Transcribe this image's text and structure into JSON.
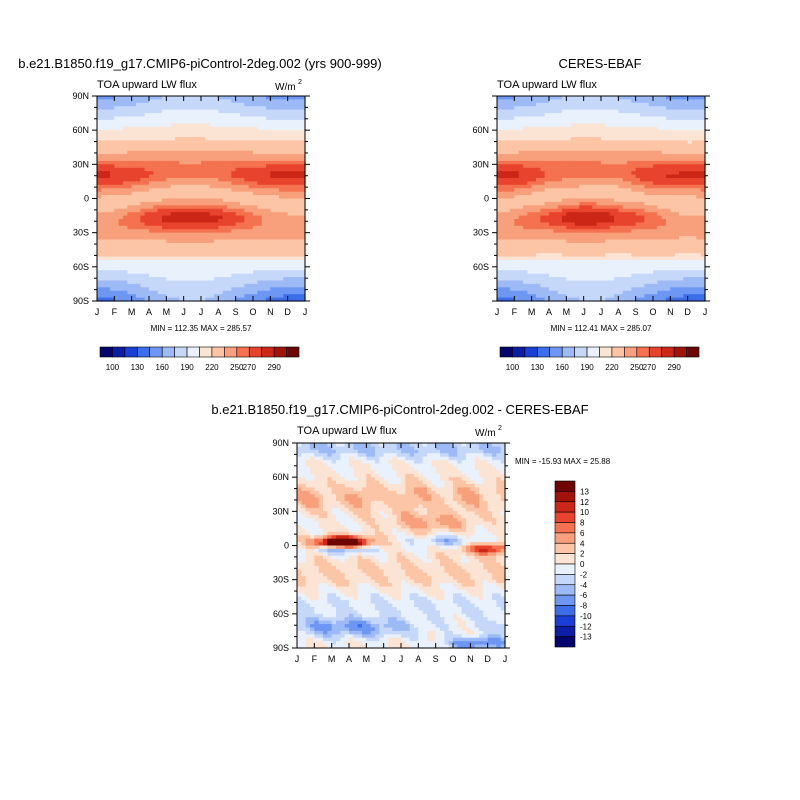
{
  "palettes": {
    "abs": [
      "#03056d",
      "#0a1fa6",
      "#1a3fd6",
      "#3d6ee9",
      "#6d97f2",
      "#9dbaf7",
      "#c6d8fa",
      "#e9f1fd",
      "#fce4d4",
      "#fbc5a6",
      "#f8a07c",
      "#f4724f",
      "#e8432d",
      "#cc2616",
      "#a11208",
      "#6e0404"
    ],
    "diff": [
      "#03056d",
      "#0a1fa6",
      "#1a3fd6",
      "#3d6ee9",
      "#6d97f2",
      "#9dbaf7",
      "#c6d8fa",
      "#e9f1fd",
      "#fce4d4",
      "#fbc5a6",
      "#f8a07c",
      "#f4724f",
      "#e8432d",
      "#cc2616",
      "#a11208",
      "#6e0404"
    ]
  },
  "panels": [
    {
      "id": "model",
      "title": "b.e21.B1850.f19_g17.CMIP6-piControl-2deg.002 (yrs 900-999)",
      "subtitle_left": "TOA upward LW flux",
      "units": "W/m",
      "units_sup": "2",
      "stats": "MIN = 112.35 MAX = 285.57"
    },
    {
      "id": "obs",
      "title": "CERES-EBAF",
      "subtitle_left": "TOA upward LW flux",
      "stats": "MIN = 112.41 MAX = 285.07"
    },
    {
      "id": "diff",
      "title": "b.e21.B1850.f19_g17.CMIP6-piControl-2deg.002 - CERES-EBAF",
      "subtitle_left": "TOA upward LW flux",
      "units": "W/m",
      "units_sup": "2",
      "stats": "MIN = -15.93 MAX =  25.88"
    }
  ],
  "chart_data": [
    {
      "type": "heatmap",
      "title": "b.e21.B1850.f19_g17.CMIP6-piControl-2deg.002 (yrs 900-999)",
      "variable": "TOA upward LW flux",
      "units": "W/m2",
      "x_ticks": [
        "J",
        "F",
        "M",
        "A",
        "M",
        "J",
        "J",
        "A",
        "S",
        "O",
        "N",
        "D",
        "J"
      ],
      "y_ticks": [
        "90N",
        "60N",
        "30N",
        "0",
        "30S",
        "60S",
        "90S"
      ],
      "y_range": [
        -90,
        90
      ],
      "min": 112.35,
      "max": 285.57,
      "colorbar_labels": [
        "100",
        "130",
        "160",
        "190",
        "220",
        "250",
        "270",
        "290"
      ],
      "levels": [
        100,
        115,
        130,
        145,
        160,
        175,
        190,
        205,
        220,
        235,
        250,
        260,
        270,
        280,
        290
      ]
    },
    {
      "type": "heatmap",
      "title": "CERES-EBAF",
      "variable": "TOA upward LW flux",
      "units": "W/m2",
      "x_ticks": [
        "J",
        "F",
        "M",
        "A",
        "M",
        "J",
        "J",
        "A",
        "S",
        "O",
        "N",
        "D",
        "J"
      ],
      "y_ticks": [
        "60N",
        "30N",
        "0",
        "30S",
        "60S"
      ],
      "y_range": [
        -90,
        90
      ],
      "min": 112.41,
      "max": 285.07,
      "colorbar_labels": [
        "100",
        "130",
        "160",
        "190",
        "220",
        "250",
        "270",
        "290"
      ],
      "levels": [
        100,
        115,
        130,
        145,
        160,
        175,
        190,
        205,
        220,
        235,
        250,
        260,
        270,
        280,
        290
      ]
    },
    {
      "type": "heatmap",
      "title": "b.e21.B1850.f19_g17.CMIP6-piControl-2deg.002 - CERES-EBAF",
      "variable": "TOA upward LW flux",
      "units": "W/m2",
      "x_ticks": [
        "J",
        "F",
        "M",
        "A",
        "M",
        "J",
        "J",
        "A",
        "S",
        "O",
        "N",
        "D",
        "J"
      ],
      "y_ticks": [
        "90N",
        "60N",
        "30N",
        "0",
        "30S",
        "60S",
        "90S"
      ],
      "y_range": [
        -90,
        90
      ],
      "min": -15.93,
      "max": 25.88,
      "colorbar_labels": [
        "13",
        "12",
        "10",
        "8",
        "6",
        "4",
        "2",
        "0",
        "-2",
        "-4",
        "-6",
        "-8",
        "-10",
        "-12",
        "-13"
      ],
      "levels": [
        -13,
        -12,
        -10,
        -8,
        -6,
        -4,
        -2,
        0,
        2,
        4,
        6,
        8,
        10,
        12,
        13
      ]
    }
  ]
}
